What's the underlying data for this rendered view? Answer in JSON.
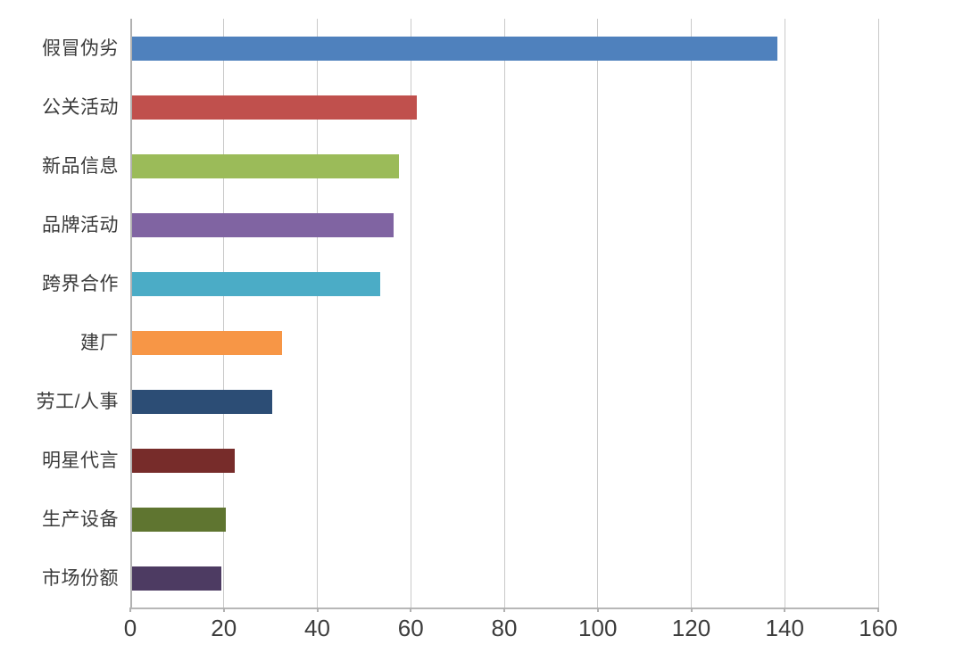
{
  "chart_data": {
    "type": "bar",
    "orientation": "horizontal",
    "title": "",
    "xlabel": "",
    "ylabel": "",
    "categories": [
      "假冒伪劣",
      "公关活动",
      "新品信息",
      "品牌活动",
      "跨界合作",
      "建厂",
      "劳工/人事",
      "明星代言",
      "生产设备",
      "市场份额"
    ],
    "values": [
      138,
      61,
      57,
      56,
      53,
      32,
      30,
      22,
      20,
      19
    ],
    "bar_colors": [
      "#4F81BD",
      "#C0504D",
      "#9BBB59",
      "#8064A2",
      "#4BACC6",
      "#F79646",
      "#2C4D75",
      "#772C2A",
      "#5F7530",
      "#4D3B62"
    ],
    "xlim": [
      0,
      160
    ],
    "x_ticks": [
      0,
      20,
      40,
      60,
      80,
      100,
      120,
      140,
      160
    ],
    "x_tick_labels": [
      "0",
      "20",
      "40",
      "60",
      "80",
      "100",
      "120",
      "140",
      "160"
    ],
    "grid": "vertical-only",
    "legend": "none",
    "colors": {
      "background": "#FFFFFF",
      "gridline": "#C9C9C9",
      "axis_line": "#B7B7B7",
      "category_label_text": "#3A3A3A",
      "tick_label_text": "#3C3C3C"
    }
  }
}
